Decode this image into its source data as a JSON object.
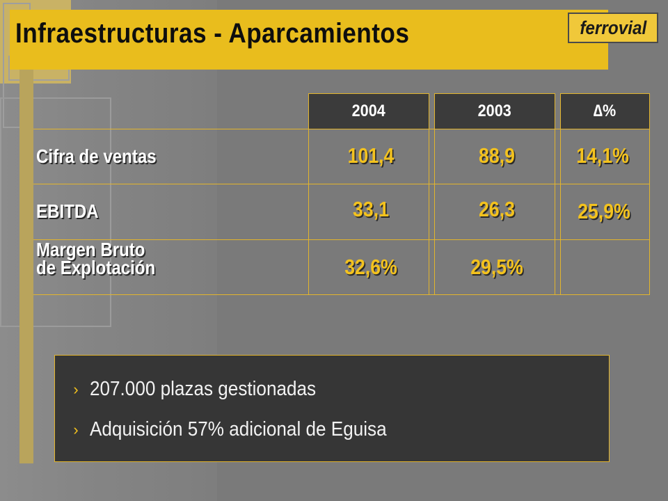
{
  "slide": {
    "title": "Infraestructuras - Aparcamientos",
    "logo": "ferrovial"
  },
  "table": {
    "headers": [
      "2004",
      "2003",
      "∆%"
    ],
    "rows": [
      {
        "label": "Cifra de ventas",
        "values": [
          "101,4",
          "88,9",
          "14,1%"
        ]
      },
      {
        "label": "EBITDA",
        "values": [
          "33,1",
          "26,3",
          "25,9%"
        ]
      },
      {
        "label_line1": "Margen Bruto",
        "label_line2": "de Explotación",
        "values": [
          "32,6%",
          "29,5%",
          ""
        ]
      }
    ]
  },
  "notes": {
    "bullet": "›",
    "items": [
      "207.000 plazas gestionadas",
      "Adquisición 57% adicional de Eguisa"
    ]
  },
  "colors": {
    "accent_yellow": "#e9bd1d",
    "value_yellow": "#f3c21e",
    "background": "#7a7a7a",
    "dark_panel": "#363636"
  }
}
